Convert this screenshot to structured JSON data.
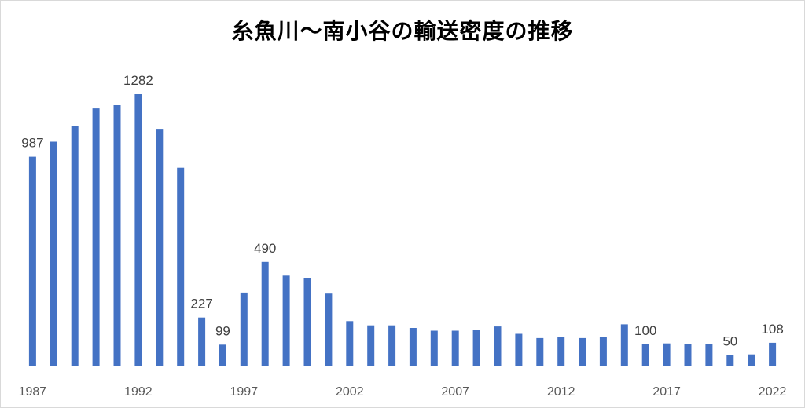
{
  "chart_data": {
    "type": "bar",
    "title": "糸魚川〜南小谷の輸送密度の推移",
    "xlabel": "",
    "ylabel": "",
    "ylim": [
      0,
      1300
    ],
    "grid": false,
    "legend": "none",
    "bar_color": "#4472C4",
    "categories": [
      1987,
      1988,
      1989,
      1990,
      1991,
      1992,
      1993,
      1994,
      1995,
      1996,
      1997,
      1998,
      1999,
      2000,
      2001,
      2002,
      2003,
      2004,
      2005,
      2006,
      2007,
      2008,
      2009,
      2010,
      2011,
      2012,
      2013,
      2014,
      2015,
      2016,
      2017,
      2018,
      2019,
      2020,
      2021,
      2022
    ],
    "values": [
      987,
      1058,
      1130,
      1215,
      1230,
      1282,
      1115,
      935,
      227,
      99,
      345,
      490,
      425,
      415,
      340,
      210,
      190,
      190,
      178,
      165,
      165,
      168,
      185,
      150,
      130,
      137,
      130,
      135,
      195,
      100,
      105,
      100,
      102,
      50,
      53,
      108
    ],
    "x_tick_labels": [
      "1987",
      "1992",
      "1997",
      "2002",
      "2007",
      "2012",
      "2017",
      "2022"
    ],
    "data_labels": [
      {
        "category": 1987,
        "text": "987"
      },
      {
        "category": 1992,
        "text": "1282"
      },
      {
        "category": 1995,
        "text": "227"
      },
      {
        "category": 1996,
        "text": "99"
      },
      {
        "category": 1998,
        "text": "490"
      },
      {
        "category": 2016,
        "text": "100"
      },
      {
        "category": 2020,
        "text": "50"
      },
      {
        "category": 2022,
        "text": "108"
      }
    ]
  }
}
